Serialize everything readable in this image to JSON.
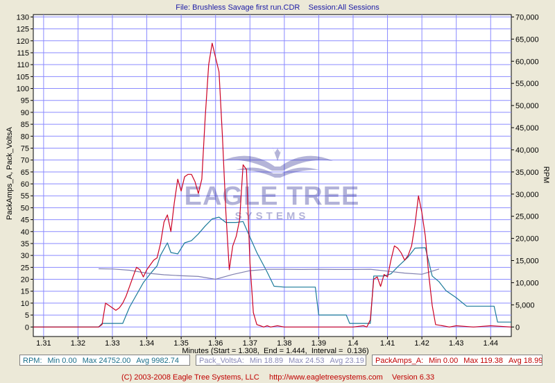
{
  "header": {
    "title": "File: Brushless Savage first run.CDR    Session:All Sessions"
  },
  "footer": {
    "copyright": "(C) 2003-2008 Eagle Tree Systems, LLC",
    "url": "http://www.eagletreesystems.com",
    "version": "Version 6.33"
  },
  "watermark": {
    "line1": "EAGLE TREE",
    "line2": "SYSTEMS"
  },
  "legend": {
    "rpm": {
      "name": "RPM:",
      "min": "Min 0.00",
      "max": "Max 24752.00",
      "avg": "Avg 9982.74"
    },
    "volts": {
      "name": "Pack_VoltsA:",
      "min": "Min 18.89",
      "max": "Max 24.53",
      "avg": "Avg 23.19"
    },
    "amps": {
      "name": "PackAmps_A:",
      "min": "Min 0.00",
      "max": "Max 119.38",
      "avg": "Avg 18.99"
    }
  },
  "colors": {
    "rpm": "#1a7a99",
    "volts": "#8080b0",
    "amps": "#cc0022",
    "grid": "#8a8aff",
    "plot_bg": "#ffffff",
    "frame": "#000000"
  },
  "chart_data": {
    "type": "line",
    "xlabel": "Minutes (Start = 1.308,  End = 1.444,  Interval =  0.136)",
    "ylabel_left": "PackAmps_A, Pack_VoltsA",
    "ylabel_right": "RPM",
    "xlim": [
      1.307,
      1.446
    ],
    "ylim_left": [
      -4,
      131
    ],
    "ylim_right": [
      -2154,
      70538
    ],
    "x_ticks": [
      1.31,
      1.32,
      1.33,
      1.34,
      1.35,
      1.36,
      1.37,
      1.38,
      1.39,
      1.4,
      1.41,
      1.42,
      1.43,
      1.44
    ],
    "x_tick_labels": [
      "1.31",
      "1.32",
      "1.33",
      "1.34",
      "1.35",
      "1.36",
      "1.37",
      "1.38",
      "1.39",
      "1.4",
      "1.41",
      "1.42",
      "1.43",
      "1.44"
    ],
    "y_left_ticks": [
      0,
      5,
      10,
      15,
      20,
      25,
      30,
      35,
      40,
      45,
      50,
      55,
      60,
      65,
      70,
      75,
      80,
      85,
      90,
      95,
      100,
      105,
      110,
      115,
      120,
      125,
      130
    ],
    "y_right_ticks": [
      0,
      5000,
      10000,
      15000,
      20000,
      25000,
      30000,
      35000,
      40000,
      45000,
      50000,
      55000,
      60000,
      65000,
      70000
    ],
    "y_right_tick_labels": [
      "0",
      "5,000",
      "10,000",
      "15,000",
      "20,000",
      "25,000",
      "30,000",
      "35,000",
      "40,000",
      "45,000",
      "50,000",
      "55,000",
      "60,000",
      "65,000",
      "70,000"
    ],
    "grid": true,
    "series": [
      {
        "name": "RPM",
        "axis": "right",
        "x": [
          1.307,
          1.326,
          1.327,
          1.333,
          1.335,
          1.339,
          1.341,
          1.343,
          1.344,
          1.346,
          1.347,
          1.349,
          1.351,
          1.353,
          1.355,
          1.357,
          1.359,
          1.361,
          1.363,
          1.366,
          1.368,
          1.37,
          1.372,
          1.375,
          1.377,
          1.38,
          1.383,
          1.386,
          1.389,
          1.39,
          1.394,
          1.398,
          1.399,
          1.403,
          1.405,
          1.406,
          1.409,
          1.411,
          1.413,
          1.416,
          1.418,
          1.421,
          1.423,
          1.425,
          1.427,
          1.43,
          1.433,
          1.436,
          1.439,
          1.441,
          1.442,
          1.444,
          1.446
        ],
        "y": [
          0,
          0,
          800,
          800,
          4500,
          10000,
          12000,
          13800,
          16200,
          19000,
          16800,
          16500,
          19000,
          19500,
          21000,
          22800,
          24400,
          24800,
          23600,
          23600,
          23800,
          20300,
          16800,
          12400,
          9200,
          9000,
          9000,
          9000,
          9000,
          2700,
          2700,
          2700,
          800,
          800,
          800,
          11500,
          11500,
          12000,
          13600,
          15800,
          17800,
          17900,
          11500,
          10200,
          8200,
          6600,
          4700,
          4700,
          4700,
          4700,
          1100,
          1100,
          1100
        ]
      },
      {
        "name": "Pack_VoltsA",
        "axis": "left",
        "x": [
          1.326,
          1.33,
          1.335,
          1.34,
          1.345,
          1.35,
          1.355,
          1.36,
          1.365,
          1.37,
          1.375,
          1.38,
          1.385,
          1.39,
          1.395,
          1.4,
          1.405,
          1.41,
          1.415,
          1.42,
          1.425
        ],
        "y": [
          24.4,
          24.3,
          23.8,
          22.6,
          21.9,
          21.5,
          21.2,
          20.0,
          22.0,
          23.6,
          24.2,
          24.2,
          24.1,
          24.2,
          24.1,
          24.1,
          24.2,
          23.4,
          22.6,
          22.1,
          24.3
        ]
      },
      {
        "name": "PackAmps_A",
        "axis": "left",
        "x": [
          1.307,
          1.326,
          1.327,
          1.328,
          1.329,
          1.331,
          1.332,
          1.333,
          1.334,
          1.336,
          1.337,
          1.338,
          1.339,
          1.34,
          1.341,
          1.342,
          1.343,
          1.344,
          1.345,
          1.346,
          1.347,
          1.348,
          1.349,
          1.35,
          1.351,
          1.352,
          1.353,
          1.354,
          1.355,
          1.356,
          1.357,
          1.358,
          1.359,
          1.36,
          1.361,
          1.362,
          1.363,
          1.364,
          1.365,
          1.366,
          1.367,
          1.368,
          1.369,
          1.37,
          1.371,
          1.372,
          1.373,
          1.374,
          1.375,
          1.376,
          1.378,
          1.38,
          1.39,
          1.4,
          1.403,
          1.404,
          1.405,
          1.406,
          1.407,
          1.408,
          1.409,
          1.41,
          1.411,
          1.412,
          1.413,
          1.414,
          1.415,
          1.416,
          1.417,
          1.418,
          1.419,
          1.42,
          1.421,
          1.422,
          1.423,
          1.424,
          1.426,
          1.428,
          1.43,
          1.435,
          1.44,
          1.446
        ],
        "y": [
          0,
          0,
          1,
          10,
          9,
          7,
          8,
          10,
          13,
          21,
          25,
          24,
          21,
          24,
          26,
          28,
          29,
          35,
          44,
          47,
          40,
          52,
          62,
          57,
          63,
          64,
          64,
          61,
          56,
          62,
          88,
          110,
          119,
          113,
          107,
          80,
          48,
          24,
          34,
          38,
          45,
          68,
          66,
          27,
          6,
          1,
          0.5,
          0,
          0.5,
          0,
          0.5,
          0,
          0,
          0,
          0.5,
          0,
          3,
          20,
          21,
          17,
          22,
          21,
          28,
          34,
          33,
          31,
          28,
          30,
          34,
          43,
          55,
          48,
          38,
          22,
          9,
          1,
          0.5,
          0,
          0.5,
          0,
          0.5,
          0
        ]
      }
    ]
  }
}
